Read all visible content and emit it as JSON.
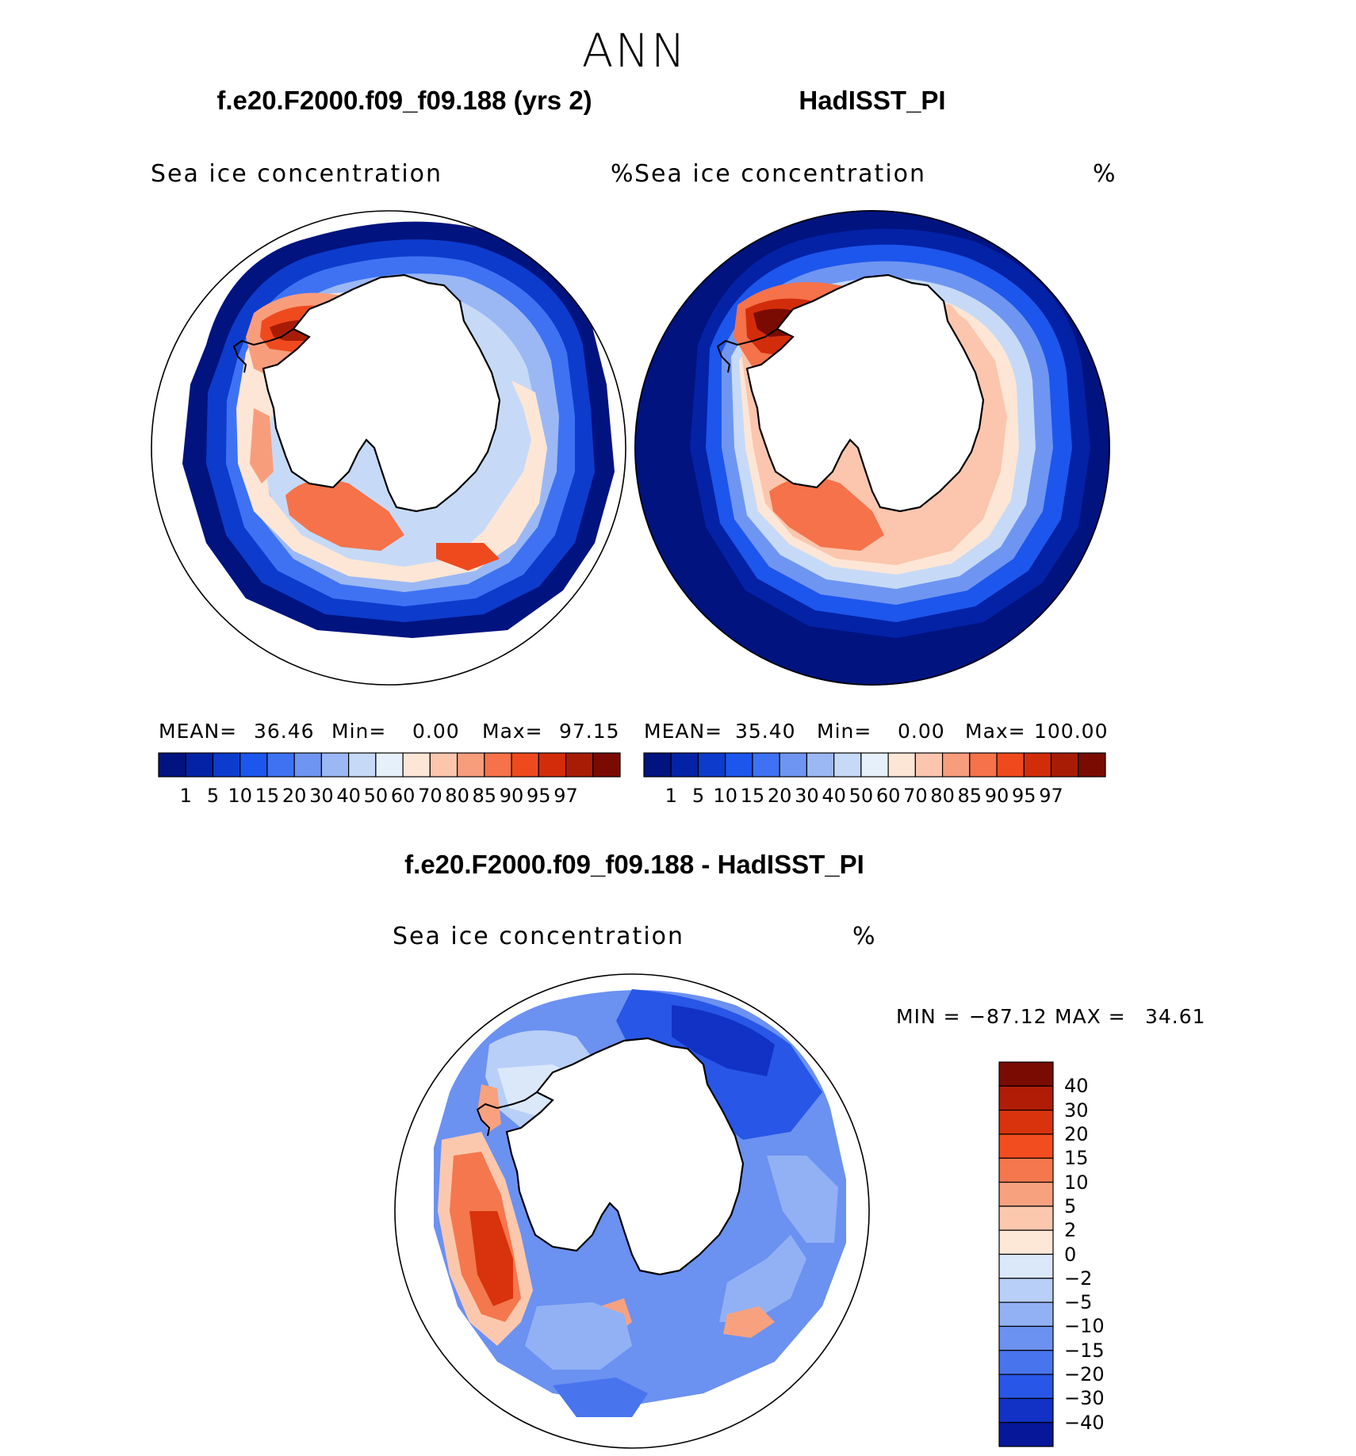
{
  "figure": {
    "title": "ANN"
  },
  "chart_data": [
    {
      "type": "heatmap",
      "panel": "model",
      "title": "f.e20.F2000.f09_f09.188 (yrs 2)",
      "variable": "Sea ice concentration",
      "units": "%",
      "projection": "south polar stereographic",
      "stats": {
        "mean_label": "MEAN=",
        "mean": "36.46",
        "min_label": "Min=",
        "min": "0.00",
        "max_label": "Max=",
        "max": "97.15"
      },
      "colorbar": {
        "orientation": "horizontal",
        "levels": [
          "1",
          "5",
          "10",
          "15",
          "20",
          "30",
          "40",
          "50",
          "60",
          "70",
          "80",
          "85",
          "90",
          "95",
          "97"
        ],
        "colors": [
          "#00137f",
          "#0422a6",
          "#0d3bcc",
          "#1d56ec",
          "#3e72f2",
          "#6f95f2",
          "#9bb8f5",
          "#c6daf7",
          "#e6f0fb",
          "#fde6d6",
          "#fbc6ad",
          "#f89d7c",
          "#f5724a",
          "#ef4a1e",
          "#d22d0b",
          "#a81c06",
          "#7a0b03"
        ]
      }
    },
    {
      "type": "heatmap",
      "panel": "observation",
      "title": "HadISST_PI",
      "variable": "Sea ice concentration",
      "units": "%",
      "projection": "south polar stereographic",
      "stats": {
        "mean_label": "MEAN=",
        "mean": "35.40",
        "min_label": "Min=",
        "min": "0.00",
        "max_label": "Max=",
        "max": "100.00"
      },
      "colorbar": {
        "orientation": "horizontal",
        "levels": [
          "1",
          "5",
          "10",
          "15",
          "20",
          "30",
          "40",
          "50",
          "60",
          "70",
          "80",
          "85",
          "90",
          "95",
          "97"
        ],
        "colors": [
          "#00137f",
          "#0422a6",
          "#0d3bcc",
          "#1d56ec",
          "#3e72f2",
          "#6f95f2",
          "#9bb8f5",
          "#c6daf7",
          "#e6f0fb",
          "#fde6d6",
          "#fbc6ad",
          "#f89d7c",
          "#f5724a",
          "#ef4a1e",
          "#d22d0b",
          "#a81c06",
          "#7a0b03"
        ]
      }
    },
    {
      "type": "heatmap",
      "panel": "difference",
      "title": "f.e20.F2000.f09_f09.188 - HadISST_PI",
      "variable": "Sea ice concentration",
      "units": "%",
      "projection": "south polar stereographic",
      "stats": {
        "min_label": "MIN =",
        "min": "−87.12",
        "max_label": "MAX =",
        "max": "34.61"
      },
      "colorbar": {
        "orientation": "vertical",
        "levels": [
          "40",
          "30",
          "20",
          "15",
          "10",
          "5",
          "2",
          "0",
          "−2",
          "−5",
          "−10",
          "−15",
          "−20",
          "−30",
          "−40"
        ],
        "colors": [
          "#7a0b03",
          "#b01c06",
          "#d8330c",
          "#f24d1f",
          "#f5774d",
          "#f8a17f",
          "#fbc8ae",
          "#fde8d8",
          "#dbe8fa",
          "#b8cff7",
          "#92b1f4",
          "#6b91f1",
          "#4874ee",
          "#2856e6",
          "#1132c4",
          "#06179a"
        ]
      }
    }
  ]
}
